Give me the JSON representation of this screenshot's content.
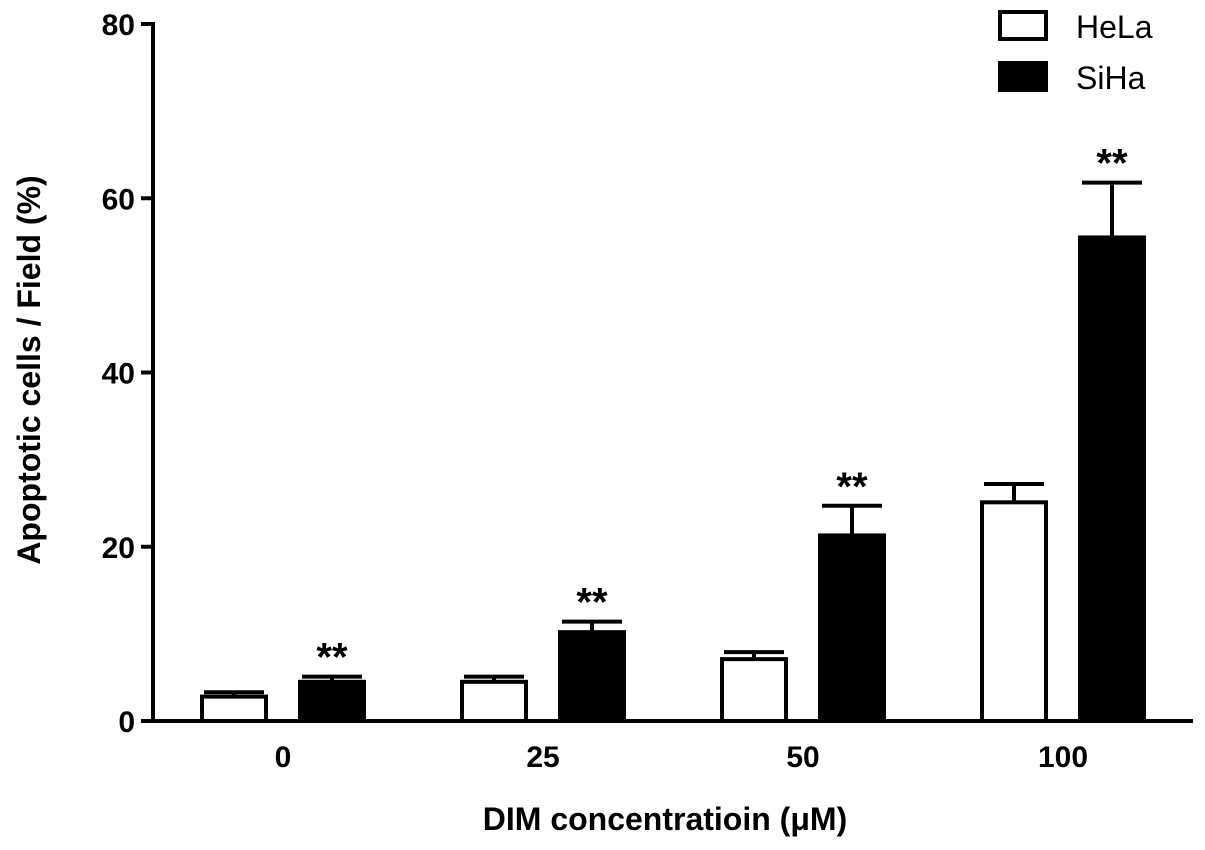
{
  "chart_data": {
    "type": "bar",
    "title": "",
    "xlabel": "DIM concentratioin (μM)",
    "ylabel": "Apoptotic cells / Field (%)",
    "categories": [
      "0",
      "25",
      "50",
      "100"
    ],
    "ylim": [
      0,
      80
    ],
    "yticks": [
      "0",
      "20",
      "40",
      "60",
      "80"
    ],
    "grid": false,
    "legend_position": "top-right",
    "series": [
      {
        "name": "HeLa",
        "fill": "#ffffff",
        "stroke": "#000000",
        "values": [
          2.8,
          4.5,
          7.1,
          25.1
        ],
        "errors": [
          0.5,
          0.6,
          0.8,
          2.1
        ],
        "annotations": [
          "",
          "",
          "",
          ""
        ]
      },
      {
        "name": "SiHa",
        "fill": "#000000",
        "stroke": "#000000",
        "values": [
          4.5,
          10.2,
          21.3,
          55.5
        ],
        "errors": [
          0.6,
          1.2,
          3.4,
          6.3
        ],
        "annotations": [
          "**",
          "**",
          "**",
          "**"
        ]
      }
    ]
  }
}
